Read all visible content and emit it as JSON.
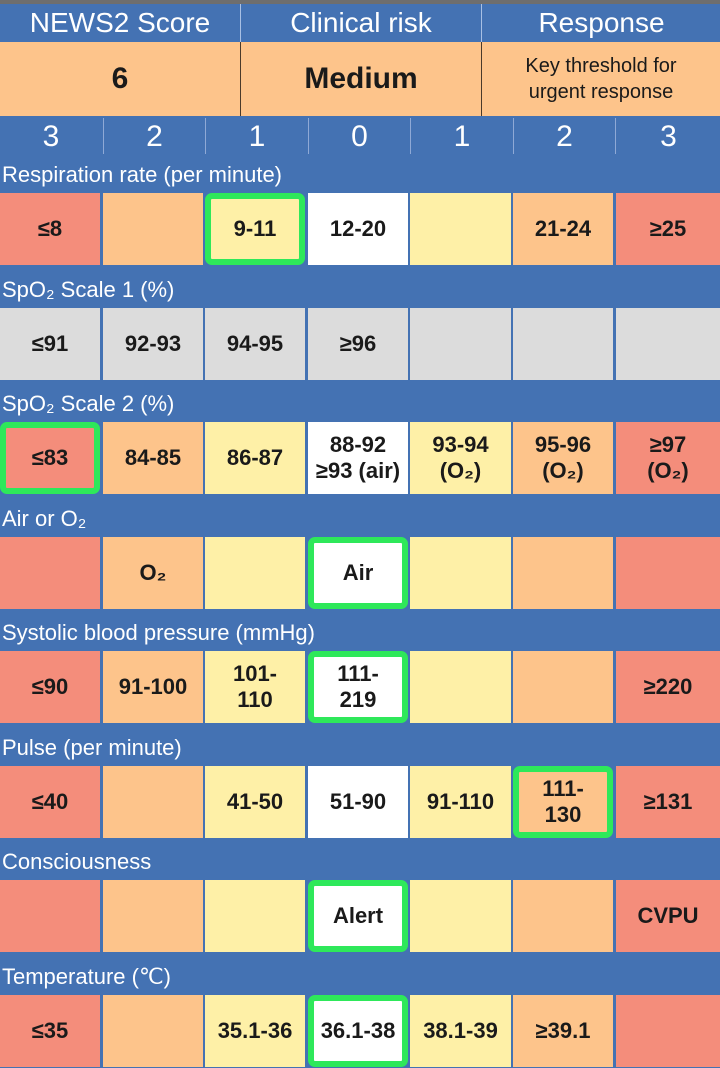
{
  "header": {
    "score_title": "NEWS2 Score",
    "risk_title": "Clinical risk",
    "response_title": "Response",
    "score_value": "6",
    "risk_value": "Medium",
    "response_value": "Key threshold for urgent response"
  },
  "score_columns": [
    "3",
    "2",
    "1",
    "0",
    "1",
    "2",
    "3"
  ],
  "colors": {
    "header_blue": "#4472b3",
    "score3_red": "#f48d7b",
    "score2_orange": "#fdc48b",
    "score1_yellow": "#fef0a7",
    "score0_white": "#ffffff",
    "disabled_grey": "#dcdcdc",
    "selected_green": "#2ee85a"
  },
  "parameters": [
    {
      "label": "Respiration rate (per minute)",
      "cells": [
        "≤8",
        "",
        "9-11",
        "12-20",
        "",
        "21-24",
        "≥25"
      ],
      "selected": 2
    },
    {
      "label": "SpO₂ Scale 1 (%)",
      "cells": [
        "≤91",
        "92-93",
        "94-95",
        "≥96",
        "",
        "",
        ""
      ],
      "selected": null,
      "disabled": true
    },
    {
      "label": "SpO₂ Scale 2 (%)",
      "cells": [
        "≤83",
        "84-85",
        "86-87",
        "88-92 ≥93 (air)",
        "93-94 (O₂)",
        "95-96 (O₂)",
        "≥97 (O₂)"
      ],
      "selected": 0
    },
    {
      "label": "Air or O₂",
      "cells": [
        "",
        "O₂",
        "",
        "Air",
        "",
        "",
        ""
      ],
      "selected": 3
    },
    {
      "label": "Systolic blood pressure (mmHg)",
      "cells": [
        "≤90",
        "91-100",
        "101-110",
        "111-219",
        "",
        "",
        "≥220"
      ],
      "selected": 3
    },
    {
      "label": "Pulse (per minute)",
      "cells": [
        "≤40",
        "",
        "41-50",
        "51-90",
        "91-110",
        "111-130",
        "≥131"
      ],
      "selected": 5
    },
    {
      "label": "Consciousness",
      "cells": [
        "",
        "",
        "",
        "Alert",
        "",
        "",
        "CVPU"
      ],
      "selected": 3
    },
    {
      "label": "Temperature (℃)",
      "cells": [
        "≤35",
        "",
        "35.1-36",
        "36.1-38",
        "38.1-39",
        "≥39.1",
        ""
      ],
      "selected": 3
    }
  ]
}
